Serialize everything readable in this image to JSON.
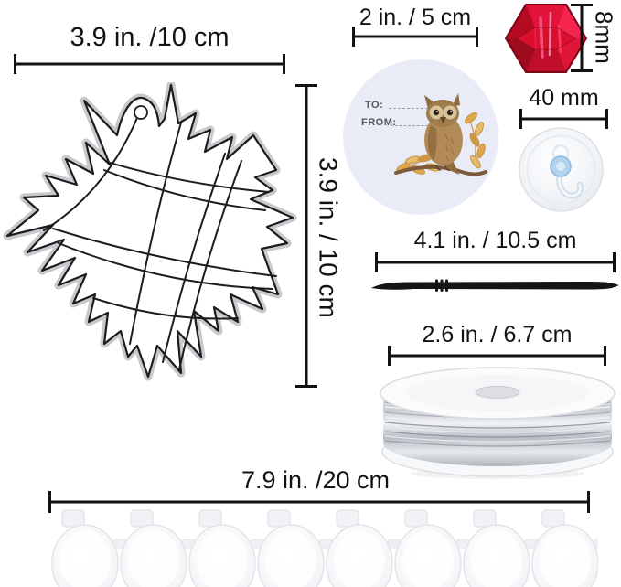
{
  "page": {
    "type": "product dimension diagram",
    "background": "#ffffff"
  },
  "labels": {
    "leaf_width": "3.9 in. /10 cm",
    "leaf_height": "3.9 in. / 10 cm",
    "gift_tag": "2 in. / 5 cm",
    "bead": "8mm",
    "suction_cup": "40 mm",
    "paintbrush": "4.1 in. / 10.5 cm",
    "wire_spool": "2.6 in. / 6.7 cm",
    "paint_strip": "7.9 in. /20 cm"
  },
  "gift_tag": {
    "to_label": "TO:",
    "from_label": "FROM:"
  },
  "paint_strip": {
    "pot_count": 8
  },
  "colors": {
    "dimension_ink": "#121212",
    "tag_background": "#e9ecf7",
    "bead_red": "#d8102e",
    "hook_blue": "#aecde8",
    "leaf_gold": "#dfa64e",
    "wire_silver": "#c3c8cd",
    "plastic_white": "#fbfbfc"
  }
}
